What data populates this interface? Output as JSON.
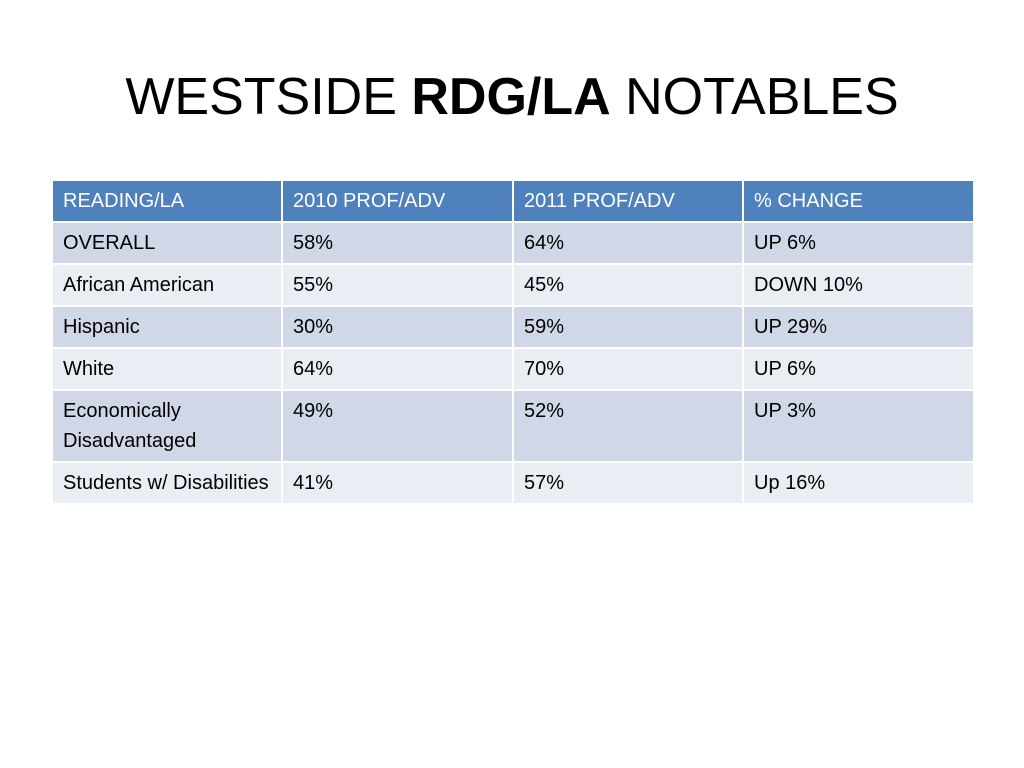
{
  "slide": {
    "title_part1": "WESTSIDE ",
    "title_bold": "RDG/LA",
    "title_part3": " NOTABLES"
  },
  "table": {
    "headers": [
      "READING/LA",
      "2010 PROF/ADV",
      "2011 PROF/ADV",
      "% CHANGE"
    ],
    "rows": [
      [
        "OVERALL",
        "58%",
        "64%",
        "UP 6%"
      ],
      [
        "African American",
        "55%",
        "45%",
        "DOWN 10%"
      ],
      [
        "Hispanic",
        "30%",
        "59%",
        "UP 29%"
      ],
      [
        "White",
        "64%",
        "70%",
        "UP 6%"
      ],
      [
        "Economically Disadvantaged",
        "49%",
        "52%",
        "UP 3%"
      ],
      [
        "Students w/ Disabilities",
        "41%",
        "57%",
        "Up 16%"
      ]
    ]
  },
  "colors": {
    "header_fill": "#4f81bd",
    "row_band_dark": "#d0d8e8",
    "row_band_light": "#e9edf4"
  }
}
